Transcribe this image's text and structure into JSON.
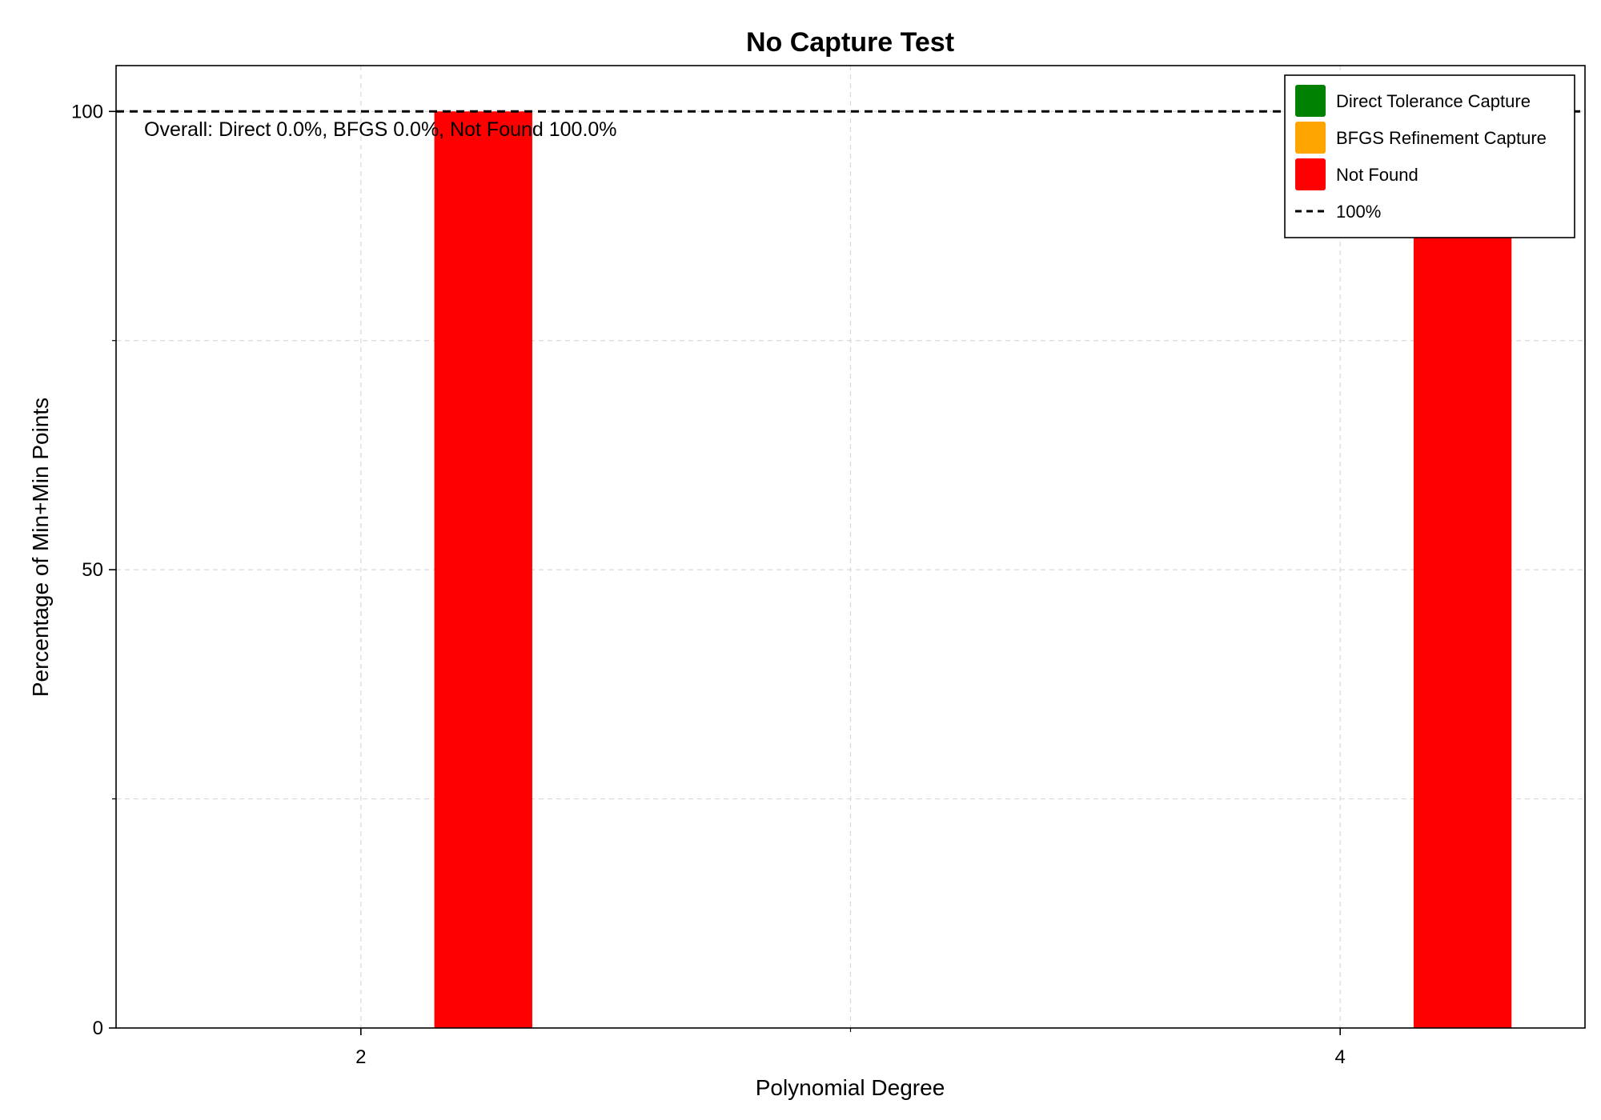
{
  "chart_data": {
    "type": "bar",
    "title": "No Capture Test",
    "xlabel": "Polynomial Degree",
    "ylabel": "Percentage of Min+Min Points",
    "x": [
      2,
      4
    ],
    "xticks": [
      "2",
      "4"
    ],
    "yticks": [
      "0",
      "50",
      "100"
    ],
    "xlim": [
      1.5,
      4.5
    ],
    "ylim": [
      0,
      105
    ],
    "grid": true,
    "stacked": true,
    "bar_offset": 0.25,
    "bar_width": 0.2,
    "series": [
      {
        "name": "Direct Tolerance Capture",
        "color": "#008000",
        "values": [
          0,
          0
        ]
      },
      {
        "name": "BFGS Refinement Capture",
        "color": "#ffa500",
        "values": [
          0,
          0
        ]
      },
      {
        "name": "Not Found",
        "color": "#ff0000",
        "values": [
          100,
          100
        ]
      }
    ],
    "reference_line": {
      "name": "100%",
      "y": 100,
      "style": "dashed",
      "color": "#000000"
    },
    "annotation": "Overall: Direct 0.0%, BFGS 0.0%, Not Found 100.0%",
    "legend_position": "top-right"
  }
}
